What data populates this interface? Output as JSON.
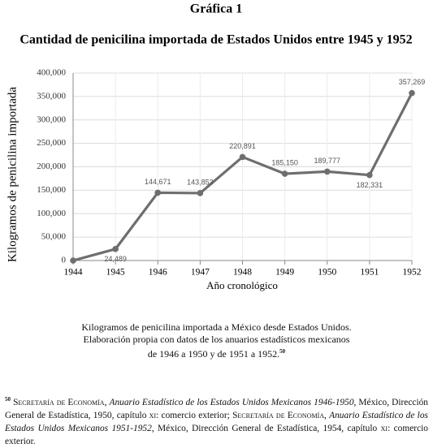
{
  "heading": "Gráfica 1",
  "chart_data": {
    "type": "line",
    "title": "Cantidad de penicilina importada de Estados Unidos entre 1945 y 1952",
    "x_label": "Año cronológico",
    "y_label": "Kilogramos de penicilina importada",
    "x": [
      1944,
      1945,
      1946,
      1947,
      1948,
      1949,
      1950,
      1951,
      1952
    ],
    "values": [
      0,
      24489,
      144671,
      143853,
      220891,
      185150,
      189777,
      182331,
      357269
    ],
    "value_labels": [
      null,
      "24,489",
      "144,671",
      "143,853",
      "220,891",
      "185,150",
      "189,777",
      "182,331",
      "357,269"
    ],
    "color": "#6e6e6e",
    "xlim": [
      1944,
      1952
    ],
    "xticks": [
      1944,
      1945,
      1946,
      1947,
      1948,
      1949,
      1950,
      1951,
      1952
    ],
    "ylim": [
      0,
      400000
    ],
    "yticks": [
      0,
      {
        "value": 50000,
        "label": "50,000"
      },
      {
        "value": 100000,
        "label": "100,000"
      },
      {
        "value": 150000,
        "label": "150,000"
      },
      {
        "value": 200000,
        "label": "200,000"
      },
      {
        "value": 250000,
        "label": "250,000"
      },
      {
        "value": 300000,
        "label": "300,000"
      },
      {
        "value": 350000,
        "label": "350,000"
      },
      {
        "value": 400000,
        "label": "400,000"
      }
    ],
    "grid": true
  },
  "caption": {
    "lines": [
      "Kilogramos de penicilina importada a México desde Estados Unidos.",
      "Elaboración propia con datos de los anuarios estadísticos mexicanos",
      "de 1946 a 1950 y de 1951 a 1952."
    ],
    "note_ref": "50"
  },
  "footnote": {
    "number": "50",
    "parts": [
      {
        "text": "Secretaría de Economía",
        "style": "small-caps"
      },
      {
        "text": ", ",
        "style": "normal"
      },
      {
        "text": "Anuario Estadístico de los Estados Unidos Mexicanos 1946-1950",
        "style": "italic"
      },
      {
        "text": ", México, Dirección General de Estadística, 1950, capítulo ",
        "style": "normal"
      },
      {
        "text": "xi",
        "style": "small-caps"
      },
      {
        "text": ": comercio exterior; ",
        "style": "normal"
      },
      {
        "text": "Secretaría de Economía",
        "style": "small-caps"
      },
      {
        "text": ", ",
        "style": "normal"
      },
      {
        "text": "Anuario Estadístico de los Estados Unidos Mexicanos 1951-1952",
        "style": "italic"
      },
      {
        "text": ", México, Dirección General de Estadística, 1954, capítulo ",
        "style": "normal"
      },
      {
        "text": "xi",
        "style": "small-caps"
      },
      {
        "text": ": comercio exterior.",
        "style": "normal"
      }
    ]
  }
}
